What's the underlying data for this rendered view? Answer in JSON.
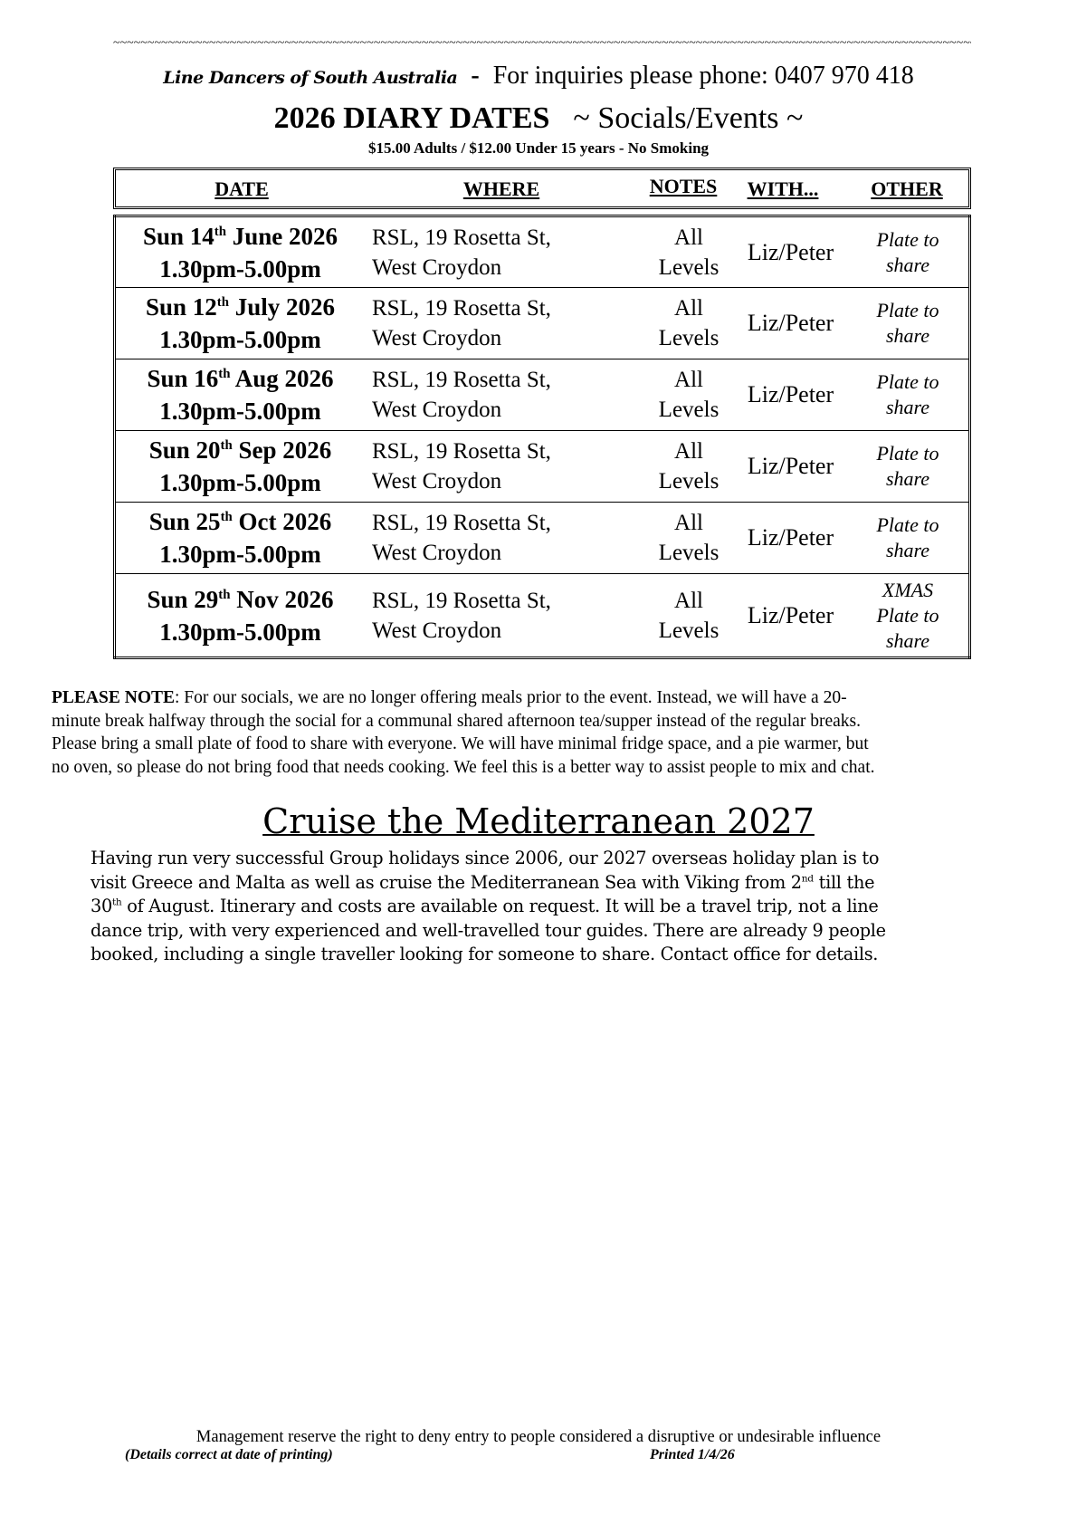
{
  "header": {
    "dashes": "~~~~~~~~~~~~~~~~~~~~~~~~~~~~~~~~~~~~~~~~~~~~~~~~~~~~~~~~~~~~~~~~~~~~~~~~~~~~~~~~~~~~~~~~~~~~~~~~~~~~~~~~~~~~~~~~~~~~~~~~~~~~~~~~~~~~~~",
    "org_name": "Line Dancers of South Australia",
    "separator": "-",
    "inquiries": "For inquiries please phone: 0407 970 418",
    "title": "2026 DIARY DATES",
    "subtitle": "~ Socials/Events ~",
    "prices": "$15.00 Adults / $12.00 Under 15 years - No Smoking"
  },
  "table": {
    "headers": [
      "DATE",
      "WHERE",
      "NOTES",
      "WITH...",
      "OTHER"
    ],
    "rows": [
      {
        "day_pre": "Sun 14",
        "sup": "th",
        "day_post": " June 2026",
        "time": "1.30pm-5.00pm",
        "where1": "RSL, 19 Rosetta St,",
        "where2": "West Croydon",
        "notes1": "All",
        "notes2": "Levels",
        "with": "Liz/Peter",
        "other1": "",
        "other2": "Plate to",
        "other3": "share"
      },
      {
        "day_pre": "Sun 12",
        "sup": "th",
        "day_post": " July 2026",
        "time": "1.30pm-5.00pm",
        "where1": "RSL, 19 Rosetta St,",
        "where2": "West Croydon",
        "notes1": "All",
        "notes2": "Levels",
        "with": "Liz/Peter",
        "other1": "",
        "other2": "Plate to",
        "other3": "share"
      },
      {
        "day_pre": "Sun 16",
        "sup": "th",
        "day_post": " Aug 2026",
        "time": "1.30pm-5.00pm",
        "where1": "RSL, 19 Rosetta St,",
        "where2": "West Croydon",
        "notes1": "All",
        "notes2": "Levels",
        "with": "Liz/Peter",
        "other1": "",
        "other2": "Plate to",
        "other3": "share"
      },
      {
        "day_pre": "Sun 20",
        "sup": "th",
        "day_post": " Sep 2026",
        "time": "1.30pm-5.00pm",
        "where1": "RSL, 19 Rosetta St,",
        "where2": "West Croydon",
        "notes1": "All",
        "notes2": "Levels",
        "with": "Liz/Peter",
        "other1": "",
        "other2": "Plate to",
        "other3": "share"
      },
      {
        "day_pre": "Sun 25",
        "sup": "th",
        "day_post": " Oct 2026",
        "time": "1.30pm-5.00pm",
        "where1": "RSL, 19 Rosetta St,",
        "where2": "West Croydon",
        "notes1": "All",
        "notes2": "Levels",
        "with": "Liz/Peter",
        "other1": "",
        "other2": "Plate to",
        "other3": "share"
      },
      {
        "day_pre": "Sun 29",
        "sup": "th",
        "day_post": " Nov 2026",
        "time": "1.30pm-5.00pm",
        "where1": "RSL, 19 Rosetta St,",
        "where2": "West Croydon",
        "notes1": "All",
        "notes2": "Levels",
        "with": "Liz/Peter",
        "other1": "XMAS",
        "other2": "Plate to",
        "other3": "share"
      }
    ]
  },
  "please_note": {
    "label": "PLEASE NOTE",
    "lines": [
      ": For our socials, we are no longer offering meals prior to the event. Instead, we will have a 20-",
      "minute break halfway through the social for a communal shared afternoon tea/supper instead of the regular breaks.",
      "Please bring a small plate of food to share with everyone. We will have minimal fridge space, and a pie warmer, but",
      "no oven, so please do not bring food that needs cooking. We feel this is a better way to assist people to mix and chat."
    ]
  },
  "cruise": {
    "title": "Cruise the Mediterranean 2027",
    "line1": "Having run very successful Group holidays since 2006, our 2027 overseas holiday plan is to",
    "line2_pre": "visit Greece and Malta as well as cruise the Mediterranean Sea with Viking from 2",
    "line2_sup": "nd",
    "line2_post": " till the",
    "line3_pre": "30",
    "line3_sup": "th",
    "line3_post": " of August. Itinerary and costs are available on request. It will be a travel trip, not a line",
    "line4": "dance trip, with very experienced and well-travelled tour guides. There are already 9 people",
    "line5": "booked, including a single traveller looking for someone to share. Contact office for details."
  },
  "footer": {
    "disclaimer": "Management reserve the right to deny entry to people considered a disruptive or undesirable influence",
    "details": "(Details correct at date of printing)",
    "printed": "Printed 1/4/26"
  }
}
